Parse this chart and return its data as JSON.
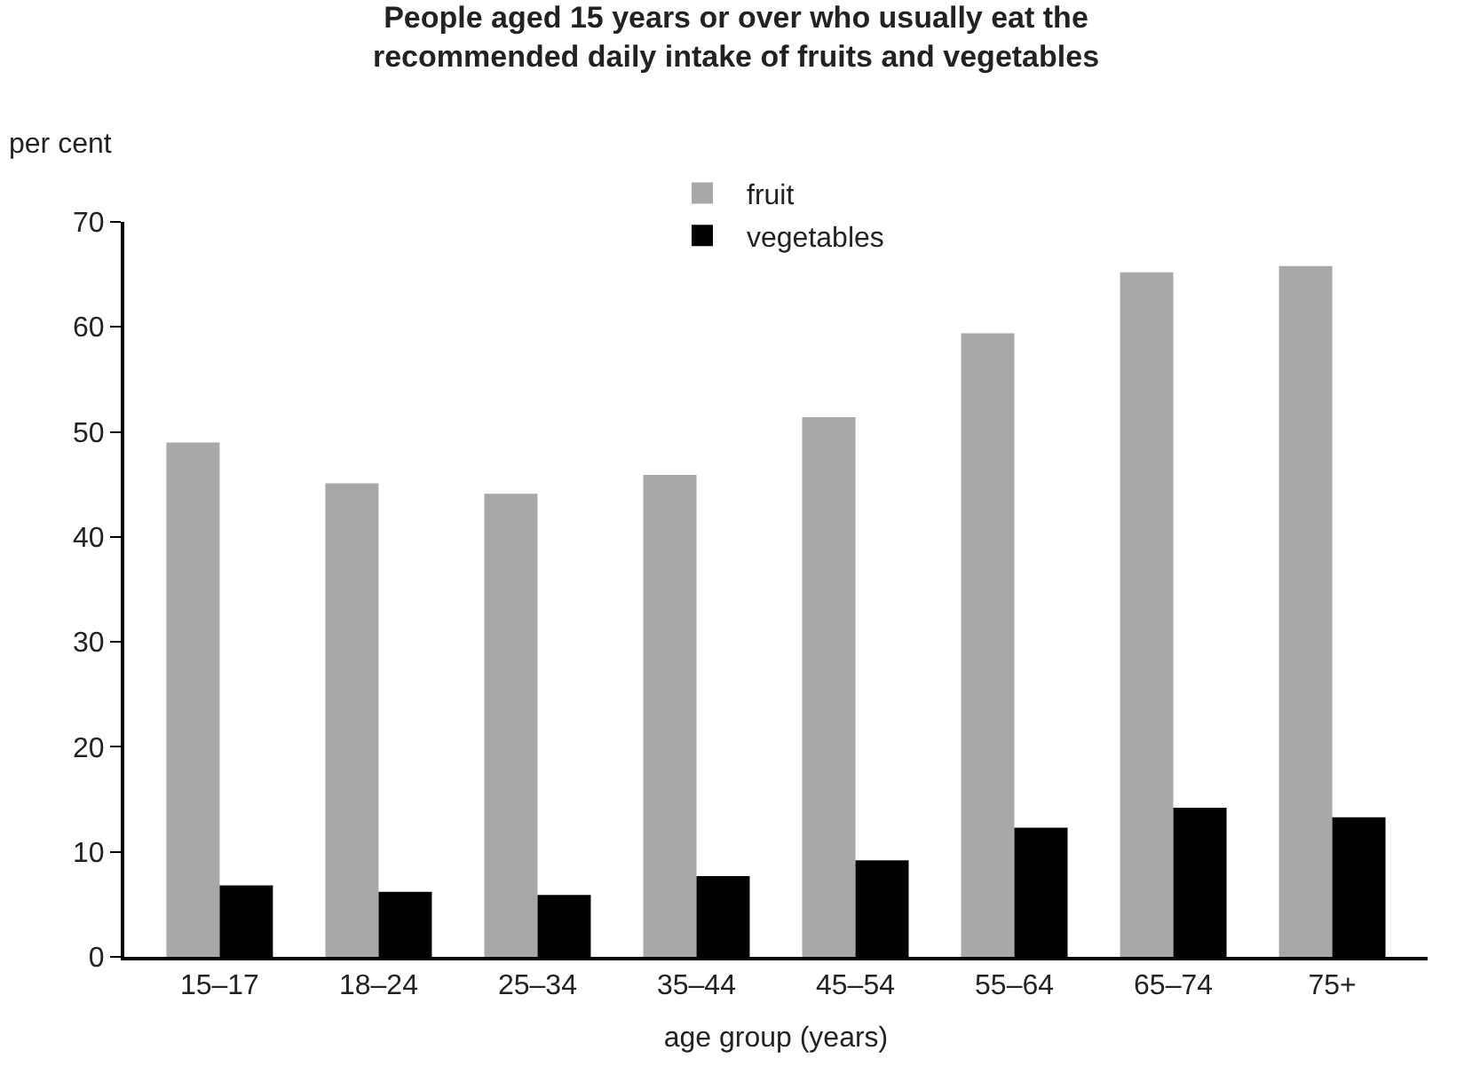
{
  "chart_data": {
    "type": "bar",
    "title": "People aged 15 years or over who usually eat the\nrecommended daily intake of fruits and vegetables",
    "xlabel": "age group (years)",
    "ylabel": "per cent",
    "categories": [
      "15–17",
      "18–24",
      "25–34",
      "35–44",
      "45–54",
      "55–64",
      "65–74",
      "75+"
    ],
    "series": [
      {
        "name": "fruit",
        "color": "#a8a8a8",
        "values": [
          49.0,
          45.1,
          44.1,
          45.9,
          51.4,
          59.4,
          65.2,
          65.8
        ]
      },
      {
        "name": "vegetables",
        "color": "#000000",
        "values": [
          6.8,
          6.2,
          5.9,
          7.7,
          9.2,
          12.3,
          14.2,
          13.3
        ]
      }
    ],
    "ylim": [
      0,
      70
    ],
    "yticks": [
      0,
      10,
      20,
      30,
      40,
      50,
      60,
      70
    ],
    "legend": "top"
  }
}
